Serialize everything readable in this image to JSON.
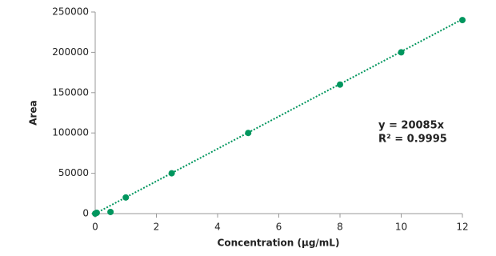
{
  "chart_data": {
    "type": "scatter",
    "x_label": "Concentration (µg/mL)",
    "y_label": "Area",
    "x": [
      0,
      0.05,
      0.5,
      1,
      2.5,
      5,
      8,
      10,
      12
    ],
    "values": [
      0,
      1000,
      2000,
      20000,
      50000,
      100000,
      160000,
      200000,
      240000
    ],
    "color": "#00965e",
    "xlim": [
      0,
      12
    ],
    "xticks": [
      0,
      2,
      4,
      6,
      8,
      10,
      12
    ],
    "ylim": [
      0,
      250000
    ],
    "yticks": [
      0,
      50000,
      100000,
      150000,
      200000,
      250000
    ],
    "grid": false,
    "trendline": {
      "slope": 20085
    },
    "annotations": [
      "y = 20085x",
      "R² = 0.9995"
    ]
  }
}
